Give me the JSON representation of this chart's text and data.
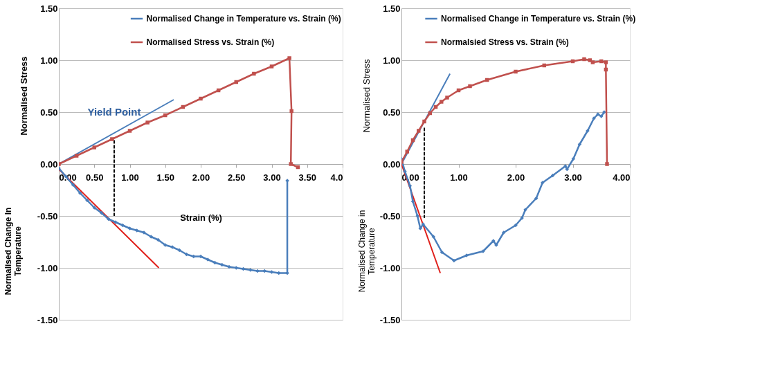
{
  "chart_data": [
    {
      "type": "line",
      "ylabel": "Normalised Stress",
      "xlabel": "Strain (%)",
      "legend": "top",
      "grid": "y",
      "xlim": [
        0,
        4
      ],
      "ylim": [
        -1.5,
        1.5
      ],
      "xticks": [
        {
          "value": 0,
          "label": "0.00"
        },
        {
          "value": 0.5,
          "label": "0.50"
        },
        {
          "value": 1,
          "label": "1.00"
        },
        {
          "value": 1.5,
          "label": "1.50"
        },
        {
          "value": 2,
          "label": "2.00"
        },
        {
          "value": 2.5,
          "label": "2.50"
        },
        {
          "value": 3,
          "label": "3.00"
        },
        {
          "value": 3.5,
          "label": "3.50"
        },
        {
          "value": 4,
          "label": "4.0"
        }
      ],
      "yticks": [
        {
          "value": -1.5,
          "label": "-1.50"
        },
        {
          "value": -1,
          "label": "-1.00"
        },
        {
          "value": -0.5,
          "label": "-0.50"
        },
        {
          "value": 0,
          "label": "0.00"
        },
        {
          "value": 0.5,
          "label": "0.50"
        },
        {
          "value": 1,
          "label": "1.00"
        },
        {
          "value": 1.5,
          "label": "1.50"
        }
      ],
      "series": [
        {
          "name": "Normalised Change in Temperature vs. Strain (%)",
          "color": "#4a7ebb",
          "marker": "diamond",
          "x": [
            0,
            0.1,
            0.2,
            0.3,
            0.4,
            0.5,
            0.6,
            0.7,
            0.8,
            0.9,
            1.0,
            1.1,
            1.2,
            1.3,
            1.4,
            1.5,
            1.6,
            1.7,
            1.8,
            1.9,
            2.0,
            2.1,
            2.2,
            2.3,
            2.4,
            2.5,
            2.6,
            2.7,
            2.8,
            2.9,
            3.0,
            3.1,
            3.22,
            3.22
          ],
          "values": [
            -0.04,
            -0.12,
            -0.2,
            -0.28,
            -0.35,
            -0.42,
            -0.47,
            -0.53,
            -0.56,
            -0.59,
            -0.62,
            -0.64,
            -0.66,
            -0.7,
            -0.73,
            -0.78,
            -0.8,
            -0.83,
            -0.87,
            -0.89,
            -0.89,
            -0.92,
            -0.95,
            -0.97,
            -0.99,
            -1.0,
            -1.01,
            -1.02,
            -1.03,
            -1.03,
            -1.04,
            -1.05,
            -1.05,
            -0.16
          ]
        },
        {
          "name": "Normalised Stress vs. Strain (%)",
          "color": "#c0504d",
          "marker": "square",
          "x": [
            0,
            0.25,
            0.5,
            0.75,
            1.0,
            1.25,
            1.5,
            1.75,
            2.0,
            2.25,
            2.5,
            2.75,
            3.0,
            3.25,
            3.28,
            3.27,
            3.37
          ],
          "values": [
            0,
            0.08,
            0.16,
            0.24,
            0.32,
            0.4,
            0.47,
            0.55,
            0.63,
            0.71,
            0.79,
            0.87,
            0.94,
            1.02,
            0.51,
            0.0,
            -0.03
          ]
        },
        {
          "color": "#4a7ebb",
          "marker": "none",
          "x": [
            0,
            1.62
          ],
          "values": [
            0,
            0.62
          ]
        },
        {
          "color": "#e0201b",
          "marker": "none",
          "x": [
            0,
            1.41
          ],
          "values": [
            -0.05,
            -1.0
          ]
        },
        {
          "color": "#000000",
          "marker": "none",
          "line_style": "dashed",
          "x": [
            0.78,
            0.78
          ],
          "values": [
            0.23,
            -0.5
          ]
        }
      ],
      "annotations": [
        "Yield Point",
        "Normalised  Change In\nTemperature"
      ]
    },
    {
      "type": "line",
      "ylabel": "Normalised Stress",
      "legend": "top",
      "grid": "y",
      "xlim": [
        0,
        4
      ],
      "ylim": [
        -1.5,
        1.5
      ],
      "xticks": [
        {
          "value": 0,
          "label": "0.00"
        },
        {
          "value": 1,
          "label": "1.00"
        },
        {
          "value": 2,
          "label": "2.00"
        },
        {
          "value": 3,
          "label": "3.00"
        },
        {
          "value": 4,
          "label": "4.00"
        }
      ],
      "yticks": [
        {
          "value": -1.5,
          "label": "-1.50"
        },
        {
          "value": -1,
          "label": "-1.00"
        },
        {
          "value": -0.5,
          "label": "-0.50"
        },
        {
          "value": 0,
          "label": "0.00"
        },
        {
          "value": 0.5,
          "label": "0.50"
        },
        {
          "value": 1,
          "label": "1.00"
        },
        {
          "value": 1.5,
          "label": "1.50"
        }
      ],
      "series": [
        {
          "name": "Normalised Change in Temperature vs. Strain (%)",
          "color": "#4a7ebb",
          "marker": "diamond",
          "x": [
            0,
            0.06,
            0.15,
            0.2,
            0.28,
            0.33,
            0.38,
            0.56,
            0.71,
            0.92,
            1.14,
            1.43,
            1.61,
            1.66,
            1.79,
            2.0,
            2.11,
            2.17,
            2.36,
            2.47,
            2.65,
            2.87,
            2.9,
            3.01,
            3.12,
            3.26,
            3.37,
            3.44,
            3.5,
            3.55
          ],
          "values": [
            0.05,
            -0.07,
            -0.21,
            -0.36,
            -0.5,
            -0.62,
            -0.58,
            -0.7,
            -0.85,
            -0.93,
            -0.88,
            -0.84,
            -0.74,
            -0.78,
            -0.66,
            -0.59,
            -0.52,
            -0.44,
            -0.33,
            -0.18,
            -0.11,
            -0.02,
            -0.05,
            0.05,
            0.19,
            0.32,
            0.44,
            0.48,
            0.46,
            0.5
          ]
        },
        {
          "name": "Normalsied Stress vs. Strain (%)",
          "color": "#c0504d",
          "marker": "square",
          "x": [
            0,
            0.1,
            0.2,
            0.3,
            0.4,
            0.5,
            0.6,
            0.7,
            0.8,
            1.0,
            1.2,
            1.5,
            2.0,
            2.5,
            3.0,
            3.2,
            3.3,
            3.35,
            3.5,
            3.58,
            3.58,
            3.6
          ],
          "values": [
            0.02,
            0.12,
            0.23,
            0.32,
            0.41,
            0.49,
            0.55,
            0.6,
            0.64,
            0.71,
            0.75,
            0.81,
            0.89,
            0.95,
            0.99,
            1.01,
            1.0,
            0.98,
            0.99,
            0.98,
            0.91,
            0.0
          ]
        },
        {
          "color": "#4a7ebb",
          "marker": "none",
          "x": [
            0,
            0.85
          ],
          "values": [
            0,
            0.87
          ]
        },
        {
          "color": "#e0201b",
          "marker": "none",
          "x": [
            0,
            0.68
          ],
          "values": [
            0,
            -1.05
          ]
        },
        {
          "color": "#000000",
          "marker": "none",
          "line_style": "dashed",
          "x": [
            0.4,
            0.4
          ],
          "values": [
            0.35,
            -0.52
          ]
        }
      ],
      "annotations": [
        "Normalised Change in\nTemperature"
      ]
    }
  ]
}
